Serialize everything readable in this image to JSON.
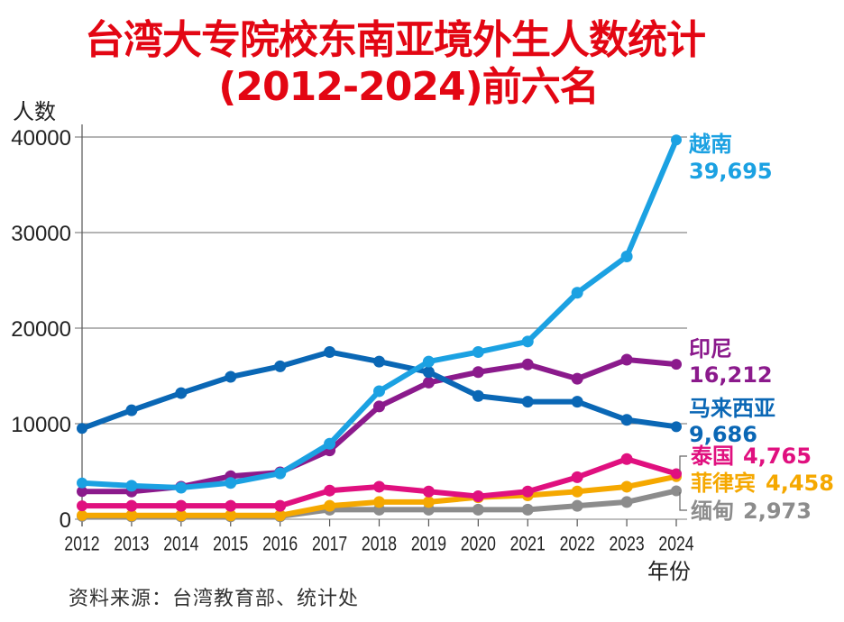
{
  "title": {
    "line1": "台湾大专院校东南亚境外生人数统计",
    "line2": "(2012-2024)前六名"
  },
  "source": "资料来源：台湾教育部、统计处",
  "chart_data": {
    "type": "line",
    "title": "台湾大专院校东南亚境外生人数统计 (2012-2024)前六名",
    "xlabel": "年份",
    "ylabel": "人数",
    "ylim": [
      0,
      40000
    ],
    "yticks": [
      0,
      10000,
      20000,
      30000,
      40000
    ],
    "grid": true,
    "x": [
      "2012",
      "2013",
      "2014",
      "2015",
      "2016",
      "2017",
      "2018",
      "2019",
      "2020",
      "2021",
      "2022",
      "2023",
      "2024"
    ],
    "series": [
      {
        "name": "越南",
        "color": "#1ba1e2",
        "end_label": "39,695",
        "values": [
          3800,
          3500,
          3300,
          3800,
          4800,
          7900,
          13400,
          16500,
          17500,
          18600,
          23700,
          27500,
          39695
        ]
      },
      {
        "name": "印尼",
        "color": "#8b1a8c",
        "end_label": "16,212",
        "values": [
          2900,
          2900,
          3400,
          4500,
          4900,
          7200,
          11800,
          14300,
          15400,
          16200,
          14700,
          16700,
          16212
        ]
      },
      {
        "name": "马来西亚",
        "color": "#0a67b5",
        "end_label": "9,686",
        "values": [
          9500,
          11400,
          13200,
          14900,
          16000,
          17500,
          16500,
          15400,
          12900,
          12300,
          12300,
          10400,
          9686
        ]
      },
      {
        "name": "泰国",
        "color": "#e0107f",
        "end_label": "4,765",
        "values": [
          1400,
          1400,
          1400,
          1400,
          1400,
          3000,
          3400,
          2900,
          2400,
          2900,
          4400,
          6300,
          4765
        ]
      },
      {
        "name": "菲律宾",
        "color": "#f5a800",
        "end_label": "4,458",
        "values": [
          400,
          400,
          400,
          400,
          400,
          1400,
          1800,
          1800,
          2300,
          2500,
          2900,
          3400,
          4458
        ]
      },
      {
        "name": "缅甸",
        "color": "#8c8c8c",
        "end_label": "2,973",
        "values": [
          300,
          300,
          300,
          300,
          300,
          1000,
          1000,
          1000,
          1000,
          1000,
          1400,
          1800,
          2973
        ]
      }
    ]
  }
}
